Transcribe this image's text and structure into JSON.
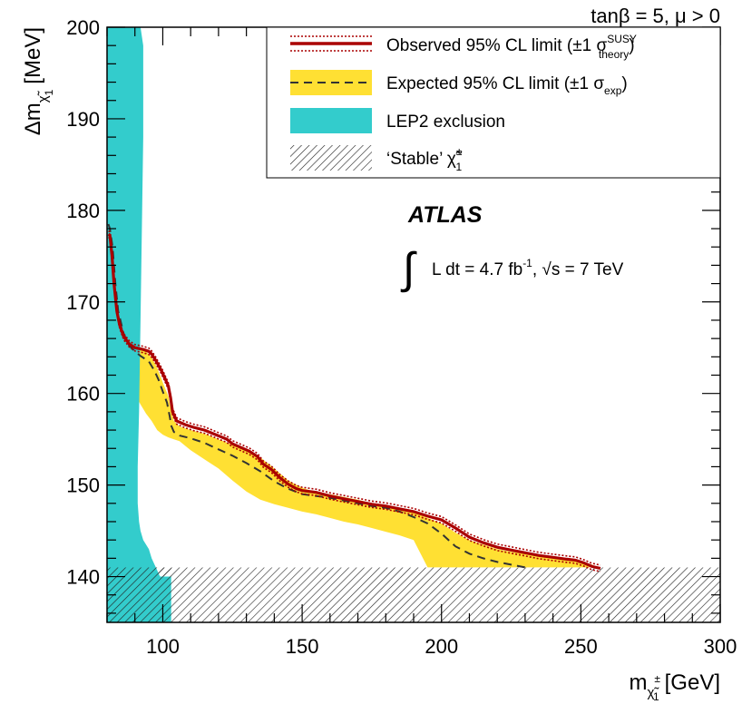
{
  "chart_data": {
    "type": "area",
    "title": "tanβ = 5, μ > 0",
    "experiment": "ATLAS",
    "luminosity_label": "L dt = 4.7 fb",
    "luminosity_exp": "-1",
    "energy_label": ", √s = 7 TeV",
    "xlabel": "m",
    "xlabel_sub": "χ̃",
    "xlabel_sup": "±",
    "xlabel_sub1": "1",
    "xlabel_unit": "[GeV]",
    "ylabel": "Δm",
    "ylabel_sub": "χ̃",
    "ylabel_sub1": "1",
    "ylabel_unit": "[MeV]",
    "xlim": [
      80,
      300
    ],
    "ylim": [
      135,
      200
    ],
    "xticks": [
      100,
      150,
      200,
      250,
      300
    ],
    "yticks": [
      140,
      150,
      160,
      170,
      180,
      190,
      200
    ],
    "xticks_minor_step": 10,
    "yticks_minor_step": 2,
    "legend": {
      "placement": "top-right",
      "observed": "Observed 95% CL limit (±1 σ",
      "observed_sup": "SUSY",
      "observed_sub": "theory",
      "expected": "Expected 95% CL limit (±1 σ",
      "expected_sub": "exp",
      "lep": "LEP2 exclusion",
      "stable": "‘Stable’ χ̃",
      "stable_sup": "±",
      "stable_sub": "1"
    },
    "colors": {
      "observed": "#aa0000",
      "expected_band": "#ffe033",
      "expected": "#333333",
      "lep": "#33cccc",
      "hatch": "#222222"
    },
    "series": [
      {
        "name": "Observed 95% CL limit",
        "x": [
          80.5,
          81,
          81.8,
          82.5,
          83.5,
          84.5,
          86,
          88,
          90,
          93,
          95,
          96,
          97.5,
          99.5,
          101,
          102,
          102.8,
          103.5,
          105,
          108,
          111,
          115,
          119,
          123,
          125,
          128,
          131,
          134,
          136,
          139,
          142,
          145,
          148,
          150,
          155,
          160,
          165,
          170,
          175,
          180,
          185,
          190,
          195,
          200,
          205,
          210,
          215,
          220,
          225,
          230,
          235,
          240,
          245,
          248,
          251,
          254,
          257
        ],
        "y": [
          177.4,
          177.3,
          175,
          172,
          169,
          167.5,
          166.2,
          165.4,
          165,
          164.8,
          164.6,
          164.3,
          163.6,
          162.5,
          161.5,
          160.8,
          159.5,
          158,
          157,
          156.6,
          156.3,
          156,
          155.5,
          155,
          154.5,
          154.1,
          153.7,
          153.1,
          152.3,
          151.7,
          150.8,
          150.1,
          149.6,
          149.4,
          149.2,
          148.8,
          148.5,
          148.2,
          147.9,
          147.7,
          147.4,
          147.1,
          146.6,
          146.2,
          145.3,
          144.3,
          143.7,
          143.2,
          142.9,
          142.6,
          142.3,
          142.1,
          141.9,
          141.8,
          141.5,
          141.1,
          140.9
        ]
      },
      {
        "name": "Expected 95% CL limit",
        "x": [
          80.5,
          81,
          82,
          83,
          84,
          86,
          88,
          90,
          92,
          95,
          97,
          98.5,
          100,
          101.5,
          102.5,
          103,
          104,
          106,
          110,
          115,
          120,
          125,
          130,
          135,
          140,
          145,
          150,
          155,
          160,
          165,
          170,
          175,
          180,
          185,
          190,
          195,
          200,
          205,
          210,
          215,
          220,
          225,
          230
        ],
        "y": [
          178.5,
          178,
          176,
          172,
          169,
          166.5,
          165.2,
          164.6,
          164.1,
          163.5,
          162.5,
          161.5,
          160.2,
          159,
          157.5,
          156.5,
          155.8,
          155.4,
          155.1,
          154.6,
          153.9,
          153.2,
          152.4,
          151.5,
          150.4,
          149.6,
          149,
          148.8,
          148.6,
          148.3,
          148,
          147.7,
          147.5,
          147.1,
          146.5,
          145.8,
          144.7,
          143.3,
          142.5,
          142,
          141.6,
          141.3,
          141
        ]
      },
      {
        "name": "Expected ±1σ upper",
        "x": [
          80.5,
          82,
          84,
          86,
          88,
          90,
          92,
          94,
          96,
          98,
          100,
          102,
          103,
          104,
          106,
          110,
          115,
          120,
          125,
          130,
          135,
          140,
          145,
          150,
          155,
          160,
          165,
          170,
          175,
          180,
          185,
          190,
          195,
          200,
          205,
          210,
          215,
          220,
          225,
          230,
          235,
          240,
          245,
          250,
          254,
          256
        ],
        "y": [
          176.5,
          175,
          170,
          167.5,
          166,
          165.4,
          165,
          164.6,
          163.9,
          162.8,
          161.2,
          159.7,
          158,
          157,
          156.4,
          156,
          155.6,
          155,
          154.4,
          153.8,
          153,
          151.8,
          150.5,
          149.7,
          149.2,
          149,
          148.7,
          148.4,
          148,
          147.7,
          147.5,
          147,
          146.4,
          145.8,
          144.8,
          144,
          143.5,
          143,
          142.7,
          142.5,
          142.2,
          142,
          141.8,
          141.6,
          141.3,
          141
        ]
      },
      {
        "name": "Expected ±1σ lower",
        "x": [
          80.5,
          82,
          84,
          86,
          88,
          90,
          92,
          94,
          96,
          98,
          100,
          102,
          104,
          106,
          108,
          110,
          115,
          120,
          125,
          130,
          135,
          140,
          145,
          150,
          155,
          160,
          165,
          170,
          175,
          180,
          185,
          190,
          195
        ],
        "y": [
          172,
          168.5,
          165.5,
          163.5,
          161.5,
          160,
          158.8,
          157.8,
          157,
          156,
          155.5,
          155.2,
          155,
          154.8,
          154.3,
          153.8,
          152.8,
          151.8,
          150.5,
          149.3,
          148.4,
          147.9,
          147.5,
          147.1,
          146.8,
          146.4,
          146,
          145.7,
          145.3,
          144.9,
          144.5,
          144,
          141
        ]
      },
      {
        "name": "LEP2 exclusion",
        "x": [
          80,
          92,
          93,
          93,
          92.5,
          92,
          91.5,
          91,
          91,
          91.5,
          92,
          93,
          94,
          95,
          96,
          97.5,
          99,
          100,
          103,
          103,
          80
        ],
        "y": [
          200,
          200,
          198,
          188,
          178,
          168,
          158,
          152,
          148,
          146,
          145,
          144,
          143.5,
          143,
          142,
          141,
          140,
          140,
          140,
          135,
          135
        ]
      }
    ],
    "stable_region": {
      "y_from": 135,
      "y_to": 141
    }
  }
}
